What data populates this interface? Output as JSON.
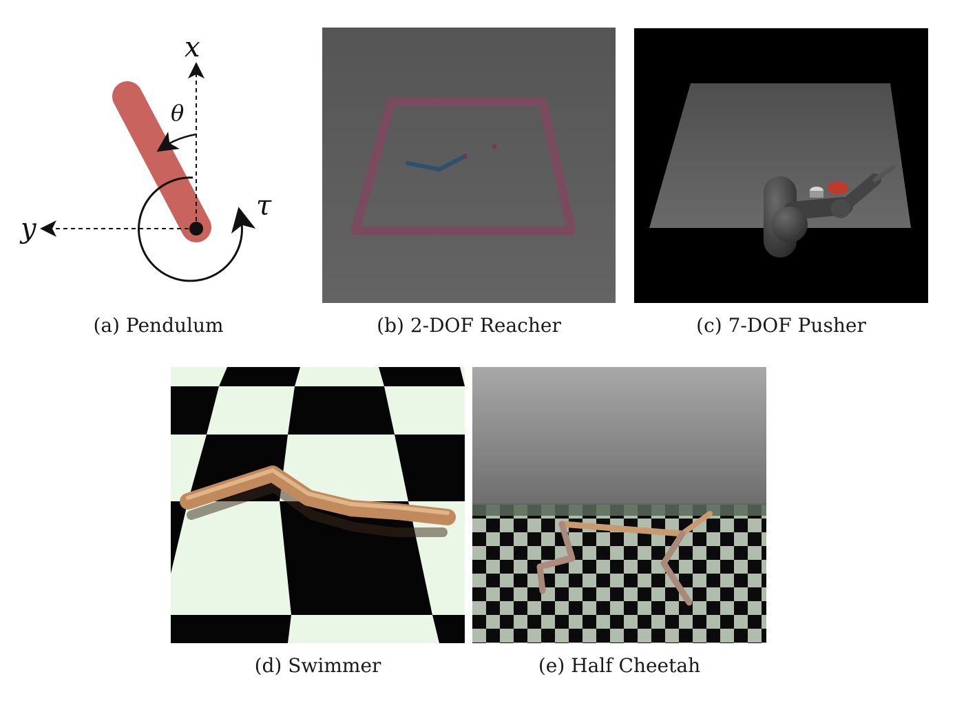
{
  "panels": {
    "pendulum": {
      "caption": "(a) Pendulum",
      "labels": {
        "x_axis": "x",
        "y_axis": "y",
        "angle": "θ",
        "torque": "τ"
      },
      "colors": {
        "rod": "#c9635e"
      }
    },
    "reacher": {
      "caption": "(b) 2-DOF Reacher",
      "colors": {
        "background": "#5a5a5a",
        "arena": "#7a4a5e",
        "arm": "#2e4f6e"
      }
    },
    "pusher": {
      "caption": "(c) 7-DOF Pusher",
      "colors": {
        "background": "#000000",
        "table": "#5c5c5c",
        "arm": "#3e3e3e",
        "target": "#c0392b"
      }
    },
    "swimmer": {
      "caption": "(d) Swimmer",
      "colors": {
        "dark_square": "#050505",
        "light_square": "#eaf7e6",
        "body": "#c08a5c"
      }
    },
    "cheetah": {
      "caption": "(e) Half Cheetah",
      "colors": {
        "sky": "#8a8a8a",
        "dark_square": "#0a0a0a",
        "light_square": "#b8c6b4",
        "body": "#c89a70"
      }
    }
  }
}
